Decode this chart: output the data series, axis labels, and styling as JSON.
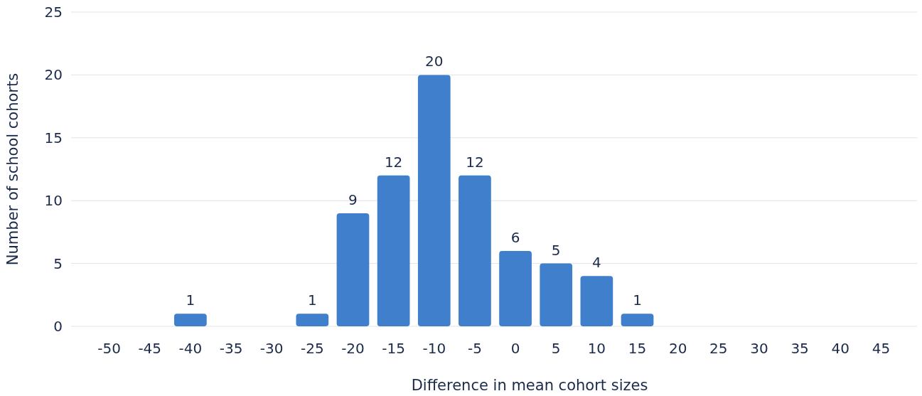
{
  "chart_data": {
    "type": "bar",
    "xlabel": "Difference in mean cohort sizes",
    "ylabel": "Number of school cohorts",
    "categories": [
      "-50",
      "-45",
      "-40",
      "-35",
      "-30",
      "-25",
      "-20",
      "-15",
      "-10",
      "-5",
      "0",
      "5",
      "10",
      "15",
      "20",
      "25",
      "30",
      "35",
      "40",
      "45"
    ],
    "values": [
      null,
      null,
      1,
      null,
      null,
      1,
      9,
      12,
      20,
      12,
      6,
      5,
      4,
      1,
      null,
      null,
      null,
      null,
      null,
      null
    ],
    "color": "#3f7fcb",
    "ylim": [
      0,
      25
    ],
    "yticks": [
      0,
      5,
      10,
      15,
      20,
      25
    ],
    "grid": "y",
    "data_labels": true
  }
}
